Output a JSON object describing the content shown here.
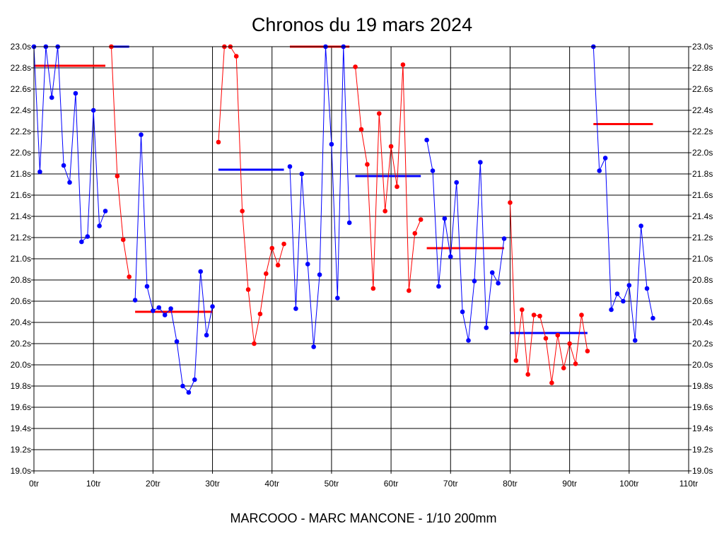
{
  "chart_data": {
    "type": "line",
    "title": "Chronos du 19 mars 2024",
    "footer": "MARCOOO - MARC MANCONE - 1/10 200mm",
    "xlim": [
      0,
      110
    ],
    "ylim": [
      19.0,
      23.0
    ],
    "grid": true,
    "x_ticks": [
      {
        "value": 0,
        "label": "0tr"
      },
      {
        "value": 10,
        "label": "10tr"
      },
      {
        "value": 20,
        "label": "20tr"
      },
      {
        "value": 30,
        "label": "30tr"
      },
      {
        "value": 40,
        "label": "40tr"
      },
      {
        "value": 50,
        "label": "50tr"
      },
      {
        "value": 60,
        "label": "60tr"
      },
      {
        "value": 70,
        "label": "70tr"
      },
      {
        "value": 80,
        "label": "80tr"
      },
      {
        "value": 90,
        "label": "90tr"
      },
      {
        "value": 100,
        "label": "100tr"
      },
      {
        "value": 110,
        "label": "110tr"
      }
    ],
    "y_ticks": [
      {
        "value": 23.0,
        "label": "23.0s"
      },
      {
        "value": 22.8,
        "label": "22.8s"
      },
      {
        "value": 22.6,
        "label": "22.6s"
      },
      {
        "value": 22.4,
        "label": "22.4s"
      },
      {
        "value": 22.2,
        "label": "22.2s"
      },
      {
        "value": 22.0,
        "label": "22.0s"
      },
      {
        "value": 21.8,
        "label": "21.8s"
      },
      {
        "value": 21.6,
        "label": "21.6s"
      },
      {
        "value": 21.4,
        "label": "21.4s"
      },
      {
        "value": 21.2,
        "label": "21.2s"
      },
      {
        "value": 21.0,
        "label": "21.0s"
      },
      {
        "value": 20.8,
        "label": "20.8s"
      },
      {
        "value": 20.6,
        "label": "20.6s"
      },
      {
        "value": 20.4,
        "label": "20.4s"
      },
      {
        "value": 20.2,
        "label": "20.2s"
      },
      {
        "value": 20.0,
        "label": "20.0s"
      },
      {
        "value": 19.8,
        "label": "19.8s"
      },
      {
        "value": 19.6,
        "label": "19.6s"
      },
      {
        "value": 19.4,
        "label": "19.4s"
      },
      {
        "value": 19.2,
        "label": "19.2s"
      },
      {
        "value": 19.0,
        "label": "19.0s"
      }
    ],
    "series": [
      {
        "color": "#0000ff",
        "points": [
          [
            0,
            23.0
          ],
          [
            1,
            21.82
          ],
          [
            2,
            23.0
          ],
          [
            3,
            22.52
          ],
          [
            4,
            23.0
          ],
          [
            5,
            21.88
          ],
          [
            6,
            21.72
          ],
          [
            7,
            22.56
          ],
          [
            8,
            21.16
          ],
          [
            9,
            21.21
          ],
          [
            10,
            22.4
          ],
          [
            11,
            21.31
          ],
          [
            12,
            21.45
          ]
        ]
      },
      {
        "color": "#ff0000",
        "points": [
          [
            13,
            23.0
          ],
          [
            14,
            21.78
          ],
          [
            15,
            21.18
          ],
          [
            16,
            20.83
          ]
        ]
      },
      {
        "color": "#0000ff",
        "points": [
          [
            17,
            20.61
          ],
          [
            18,
            22.17
          ],
          [
            19,
            20.74
          ],
          [
            20,
            20.51
          ],
          [
            21,
            20.54
          ],
          [
            22,
            20.47
          ],
          [
            23,
            20.53
          ],
          [
            24,
            20.22
          ],
          [
            25,
            19.8
          ],
          [
            26,
            19.74
          ],
          [
            27,
            19.86
          ],
          [
            28,
            20.88
          ],
          [
            29,
            20.28
          ],
          [
            30,
            20.55
          ]
        ]
      },
      {
        "color": "#ff0000",
        "points": [
          [
            31,
            22.1
          ],
          [
            32,
            23.0
          ],
          [
            33,
            23.0
          ],
          [
            34,
            22.91
          ],
          [
            35,
            21.45
          ],
          [
            36,
            20.71
          ],
          [
            37,
            20.2
          ],
          [
            38,
            20.48
          ],
          [
            39,
            20.86
          ],
          [
            40,
            21.1
          ],
          [
            41,
            20.94
          ],
          [
            42,
            21.14
          ]
        ]
      },
      {
        "color": "#0000ff",
        "points": [
          [
            43,
            21.87
          ],
          [
            44,
            20.53
          ],
          [
            45,
            21.8
          ],
          [
            46,
            20.95
          ],
          [
            47,
            20.17
          ],
          [
            48,
            20.85
          ],
          [
            49,
            23.0
          ],
          [
            50,
            22.08
          ],
          [
            51,
            20.63
          ],
          [
            52,
            23.0
          ],
          [
            53,
            21.34
          ]
        ]
      },
      {
        "color": "#ff0000",
        "points": [
          [
            54,
            22.81
          ],
          [
            55,
            22.22
          ],
          [
            56,
            21.89
          ],
          [
            57,
            20.72
          ],
          [
            58,
            22.37
          ],
          [
            59,
            21.45
          ],
          [
            60,
            22.06
          ],
          [
            61,
            21.68
          ],
          [
            62,
            22.83
          ],
          [
            63,
            20.7
          ],
          [
            64,
            21.24
          ],
          [
            65,
            21.37
          ]
        ]
      },
      {
        "color": "#0000ff",
        "points": [
          [
            66,
            22.12
          ],
          [
            67,
            21.83
          ],
          [
            68,
            20.74
          ],
          [
            69,
            21.38
          ],
          [
            70,
            21.02
          ],
          [
            71,
            21.72
          ],
          [
            72,
            20.5
          ],
          [
            73,
            20.23
          ],
          [
            74,
            20.79
          ],
          [
            75,
            21.91
          ],
          [
            76,
            20.35
          ],
          [
            77,
            20.87
          ],
          [
            78,
            20.77
          ],
          [
            79,
            21.19
          ]
        ]
      },
      {
        "color": "#ff0000",
        "points": [
          [
            80,
            21.53
          ],
          [
            81,
            20.04
          ],
          [
            82,
            20.52
          ],
          [
            83,
            19.91
          ],
          [
            84,
            20.47
          ],
          [
            85,
            20.46
          ],
          [
            86,
            20.25
          ],
          [
            87,
            19.83
          ],
          [
            88,
            20.28
          ],
          [
            89,
            19.97
          ],
          [
            90,
            20.2
          ],
          [
            91,
            20.01
          ],
          [
            92,
            20.47
          ],
          [
            93,
            20.13
          ]
        ]
      },
      {
        "color": "#0000ff",
        "points": [
          [
            94,
            23.0
          ],
          [
            95,
            21.83
          ],
          [
            96,
            21.95
          ],
          [
            97,
            20.52
          ],
          [
            98,
            20.67
          ],
          [
            99,
            20.6
          ],
          [
            100,
            20.75
          ],
          [
            101,
            20.23
          ],
          [
            102,
            21.31
          ],
          [
            103,
            20.72
          ],
          [
            104,
            20.44
          ]
        ]
      }
    ],
    "averages": [
      {
        "color": "#ff0000",
        "x": [
          0,
          12
        ],
        "y": 22.82
      },
      {
        "color": "#0000ff",
        "x": [
          13,
          16
        ],
        "y": 23.0
      },
      {
        "color": "#ff0000",
        "x": [
          17,
          30
        ],
        "y": 20.5
      },
      {
        "color": "#0000ff",
        "x": [
          31,
          42
        ],
        "y": 21.84
      },
      {
        "color": "#ff0000",
        "x": [
          43,
          53
        ],
        "y": 23.0
      },
      {
        "color": "#0000ff",
        "x": [
          54,
          65
        ],
        "y": 21.78
      },
      {
        "color": "#ff0000",
        "x": [
          66,
          79
        ],
        "y": 21.1
      },
      {
        "color": "#0000ff",
        "x": [
          80,
          93
        ],
        "y": 20.3
      },
      {
        "color": "#ff0000",
        "x": [
          94,
          104
        ],
        "y": 22.27
      }
    ]
  }
}
